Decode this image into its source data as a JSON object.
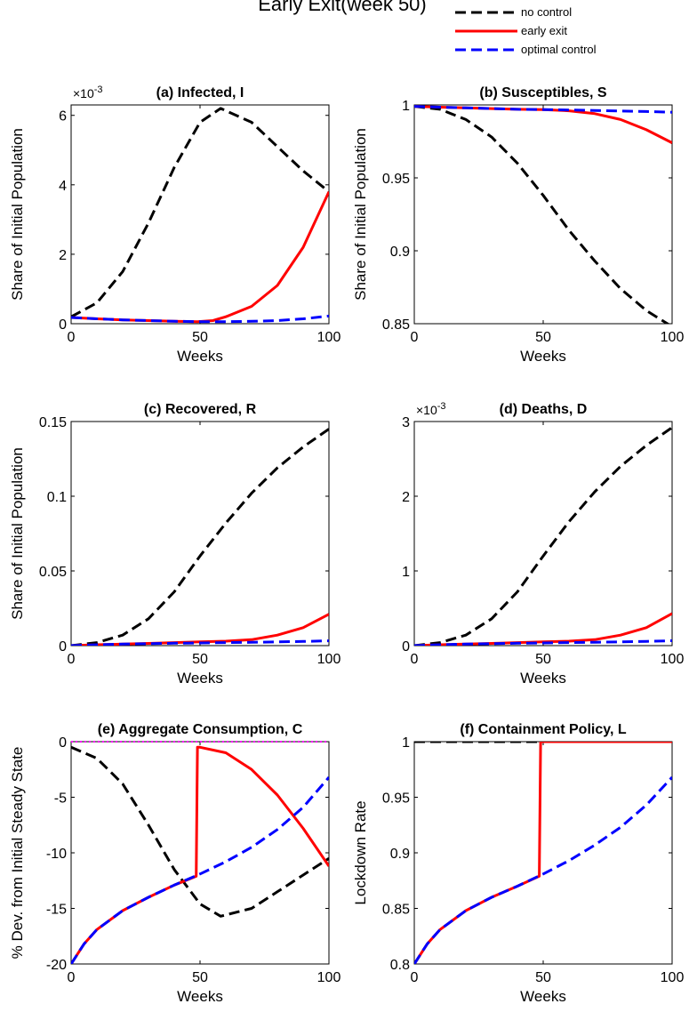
{
  "figure_title": "Early Exit(week 50)",
  "legend": [
    {
      "label": "no control",
      "color": "#000000",
      "dash": "dashed"
    },
    {
      "label": "early exit",
      "color": "#ff0000",
      "dash": "solid"
    },
    {
      "label": "optimal control",
      "color": "#0000ff",
      "dash": "dashed"
    }
  ],
  "chart_data": [
    {
      "type": "line",
      "title": "(a) Infected, I",
      "xlabel": "Weeks",
      "ylabel": "Share of Initial Population",
      "exponent": "×10",
      "exponent_power": "-3",
      "xlim": [
        0,
        100
      ],
      "ylim": [
        0,
        6.3
      ],
      "xticks": [
        0,
        50,
        100
      ],
      "xtick_labels": [
        "0",
        "50",
        "100"
      ],
      "yticks": [
        0,
        2,
        4,
        6
      ],
      "ytick_labels": [
        "0",
        "2",
        "4",
        "6"
      ],
      "series": [
        {
          "name": "no control",
          "color": "#000000",
          "dash": "dashed",
          "x": [
            0,
            10,
            20,
            30,
            40,
            50,
            58,
            70,
            80,
            90,
            100
          ],
          "y": [
            0.2,
            0.6,
            1.5,
            2.9,
            4.5,
            5.8,
            6.2,
            5.8,
            5.1,
            4.4,
            3.8
          ]
        },
        {
          "name": "early exit",
          "color": "#ff0000",
          "dash": "solid",
          "x": [
            0,
            10,
            20,
            30,
            40,
            49,
            55,
            60,
            70,
            80,
            90,
            100
          ],
          "y": [
            0.18,
            0.14,
            0.11,
            0.09,
            0.07,
            0.06,
            0.09,
            0.2,
            0.5,
            1.1,
            2.2,
            3.8
          ]
        },
        {
          "name": "optimal control",
          "color": "#0000ff",
          "dash": "dashed",
          "x": [
            0,
            10,
            20,
            30,
            40,
            50,
            60,
            70,
            80,
            90,
            100
          ],
          "y": [
            0.18,
            0.14,
            0.11,
            0.09,
            0.07,
            0.06,
            0.06,
            0.07,
            0.09,
            0.14,
            0.22
          ]
        }
      ]
    },
    {
      "type": "line",
      "title": "(b) Susceptibles, S",
      "xlabel": "Weeks",
      "ylabel": "Share of Initial Population",
      "xlim": [
        0,
        100
      ],
      "ylim": [
        0.85,
        1.0
      ],
      "xticks": [
        0,
        50,
        100
      ],
      "xtick_labels": [
        "0",
        "50",
        "100"
      ],
      "yticks": [
        0.85,
        0.9,
        0.95,
        1.0
      ],
      "ytick_labels": [
        "0.85",
        "0.9",
        "0.95",
        "1"
      ],
      "series": [
        {
          "name": "no control",
          "color": "#000000",
          "dash": "dashed",
          "x": [
            0,
            10,
            20,
            30,
            40,
            50,
            60,
            70,
            80,
            90,
            100
          ],
          "y": [
            0.999,
            0.997,
            0.99,
            0.978,
            0.96,
            0.938,
            0.914,
            0.893,
            0.874,
            0.859,
            0.848
          ]
        },
        {
          "name": "early exit",
          "color": "#ff0000",
          "dash": "solid",
          "x": [
            0,
            10,
            20,
            30,
            40,
            50,
            60,
            70,
            80,
            90,
            100
          ],
          "y": [
            0.999,
            0.9985,
            0.998,
            0.9975,
            0.997,
            0.9968,
            0.996,
            0.994,
            0.99,
            0.983,
            0.974
          ]
        },
        {
          "name": "optimal control",
          "color": "#0000ff",
          "dash": "dashed",
          "x": [
            0,
            10,
            20,
            30,
            40,
            50,
            60,
            70,
            80,
            90,
            100
          ],
          "y": [
            0.999,
            0.9985,
            0.998,
            0.9975,
            0.997,
            0.9968,
            0.9965,
            0.9962,
            0.9958,
            0.9955,
            0.995
          ]
        }
      ]
    },
    {
      "type": "line",
      "title": "(c) Recovered, R",
      "xlabel": "Weeks",
      "ylabel": "Share of Initial Population",
      "xlim": [
        0,
        100
      ],
      "ylim": [
        0,
        0.15
      ],
      "xticks": [
        0,
        50,
        100
      ],
      "xtick_labels": [
        "0",
        "50",
        "100"
      ],
      "yticks": [
        0,
        0.05,
        0.1,
        0.15
      ],
      "ytick_labels": [
        "0",
        "0.05",
        "0.1",
        "0.15"
      ],
      "series": [
        {
          "name": "no control",
          "color": "#000000",
          "dash": "dashed",
          "x": [
            0,
            10,
            20,
            30,
            40,
            50,
            60,
            70,
            80,
            90,
            100
          ],
          "y": [
            0.0,
            0.002,
            0.007,
            0.018,
            0.036,
            0.06,
            0.082,
            0.102,
            0.119,
            0.133,
            0.145
          ]
        },
        {
          "name": "early exit",
          "color": "#ff0000",
          "dash": "solid",
          "x": [
            0,
            10,
            20,
            30,
            40,
            50,
            60,
            70,
            80,
            90,
            100
          ],
          "y": [
            0.0,
            0.0006,
            0.001,
            0.0015,
            0.002,
            0.0025,
            0.003,
            0.004,
            0.007,
            0.012,
            0.021
          ]
        },
        {
          "name": "optimal control",
          "color": "#0000ff",
          "dash": "dashed",
          "x": [
            0,
            10,
            20,
            30,
            40,
            50,
            60,
            70,
            80,
            90,
            100
          ],
          "y": [
            0.0,
            0.0006,
            0.001,
            0.0013,
            0.0016,
            0.0018,
            0.002,
            0.0022,
            0.0025,
            0.0028,
            0.0032
          ]
        }
      ]
    },
    {
      "type": "line",
      "title": "(d) Deaths, D",
      "xlabel": "Weeks",
      "ylabel": "",
      "exponent": "×10",
      "exponent_power": "-3",
      "xlim": [
        0,
        100
      ],
      "ylim": [
        0,
        3.0
      ],
      "xticks": [
        0,
        50,
        100
      ],
      "xtick_labels": [
        "0",
        "50",
        "100"
      ],
      "yticks": [
        0,
        1,
        2,
        3
      ],
      "ytick_labels": [
        "0",
        "1",
        "2",
        "3"
      ],
      "series": [
        {
          "name": "no control",
          "color": "#000000",
          "dash": "dashed",
          "x": [
            0,
            10,
            20,
            30,
            40,
            50,
            60,
            70,
            80,
            90,
            100
          ],
          "y": [
            0.0,
            0.04,
            0.14,
            0.36,
            0.72,
            1.2,
            1.66,
            2.06,
            2.4,
            2.68,
            2.92
          ]
        },
        {
          "name": "early exit",
          "color": "#ff0000",
          "dash": "solid",
          "x": [
            0,
            10,
            20,
            30,
            40,
            50,
            60,
            70,
            80,
            90,
            100
          ],
          "y": [
            0.0,
            0.012,
            0.02,
            0.03,
            0.04,
            0.05,
            0.06,
            0.08,
            0.14,
            0.24,
            0.43
          ]
        },
        {
          "name": "optimal control",
          "color": "#0000ff",
          "dash": "dashed",
          "x": [
            0,
            10,
            20,
            30,
            40,
            50,
            60,
            70,
            80,
            90,
            100
          ],
          "y": [
            0.0,
            0.012,
            0.02,
            0.026,
            0.032,
            0.036,
            0.04,
            0.045,
            0.05,
            0.057,
            0.065
          ]
        }
      ]
    },
    {
      "type": "line",
      "title": "(e) Aggregate Consumption, C",
      "xlabel": "Weeks",
      "ylabel": "% Dev. from Initial Steady State",
      "xlim": [
        0,
        100
      ],
      "ylim": [
        -20,
        0
      ],
      "xticks": [
        0,
        50,
        100
      ],
      "xtick_labels": [
        "0",
        "50",
        "100"
      ],
      "yticks": [
        -20,
        -15,
        -10,
        -5,
        0
      ],
      "ytick_labels": [
        "-20",
        "-15",
        "-10",
        "-5",
        "0"
      ],
      "hline": {
        "y": 0,
        "color": "#ff00ff"
      },
      "series": [
        {
          "name": "no control",
          "color": "#000000",
          "dash": "dashed",
          "x": [
            0,
            10,
            20,
            30,
            40,
            50,
            58,
            70,
            80,
            90,
            100
          ],
          "y": [
            -0.5,
            -1.5,
            -3.8,
            -7.5,
            -11.5,
            -14.6,
            -15.7,
            -15.0,
            -13.5,
            -12.0,
            -10.5
          ]
        },
        {
          "name": "early exit",
          "color": "#ff0000",
          "dash": "solid",
          "x": [
            0,
            5,
            10,
            20,
            30,
            40,
            48.5,
            49,
            50,
            60,
            70,
            80,
            90,
            100
          ],
          "y": [
            -20,
            -18.2,
            -16.9,
            -15.2,
            -14.0,
            -12.9,
            -12.1,
            -0.5,
            -0.5,
            -1.0,
            -2.5,
            -4.8,
            -7.8,
            -11.2
          ]
        },
        {
          "name": "optimal control",
          "color": "#0000ff",
          "dash": "dashed",
          "x": [
            0,
            5,
            10,
            20,
            30,
            40,
            50,
            60,
            70,
            80,
            90,
            100
          ],
          "y": [
            -20,
            -18.2,
            -16.9,
            -15.2,
            -14.0,
            -12.9,
            -11.9,
            -10.8,
            -9.5,
            -7.9,
            -5.9,
            -3.2
          ]
        }
      ]
    },
    {
      "type": "line",
      "title": "(f) Containment Policy, L",
      "xlabel": "Weeks",
      "ylabel": "Lockdown Rate",
      "xlim": [
        0,
        100
      ],
      "ylim": [
        0.8,
        1.0
      ],
      "xticks": [
        0,
        50,
        100
      ],
      "xtick_labels": [
        "0",
        "50",
        "100"
      ],
      "yticks": [
        0.8,
        0.85,
        0.9,
        0.95,
        1.0
      ],
      "ytick_labels": [
        "0.8",
        "0.85",
        "0.9",
        "0.95",
        "1"
      ],
      "series": [
        {
          "name": "no control",
          "color": "#000000",
          "dash": "dashed",
          "x": [
            0,
            100
          ],
          "y": [
            1.0,
            1.0
          ]
        },
        {
          "name": "early exit",
          "color": "#ff0000",
          "dash": "solid",
          "x": [
            0,
            5,
            10,
            20,
            30,
            40,
            48.5,
            49,
            100
          ],
          "y": [
            0.8,
            0.818,
            0.831,
            0.848,
            0.86,
            0.87,
            0.879,
            1.0,
            1.0
          ]
        },
        {
          "name": "optimal control",
          "color": "#0000ff",
          "dash": "dashed",
          "x": [
            0,
            5,
            10,
            20,
            30,
            40,
            50,
            60,
            70,
            80,
            90,
            100
          ],
          "y": [
            0.8,
            0.818,
            0.831,
            0.848,
            0.86,
            0.87,
            0.881,
            0.893,
            0.907,
            0.923,
            0.943,
            0.968
          ]
        }
      ]
    }
  ]
}
